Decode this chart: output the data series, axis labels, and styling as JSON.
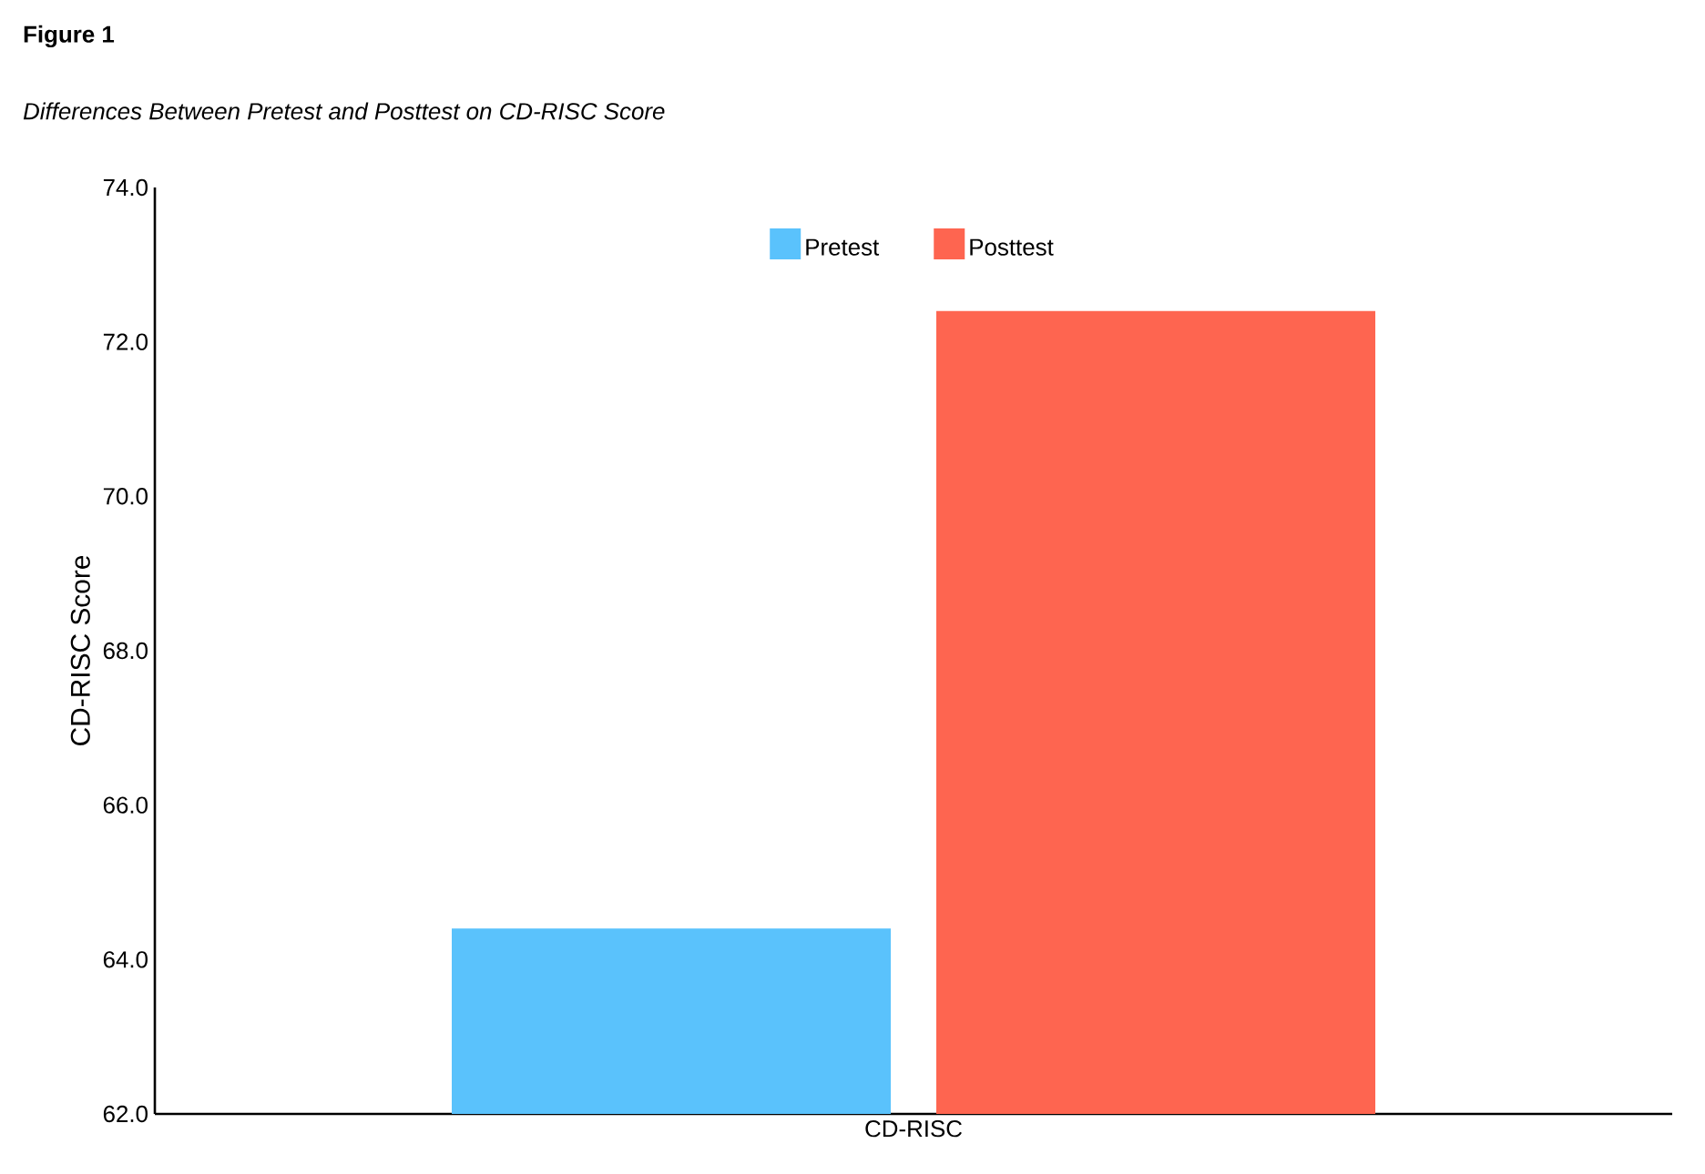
{
  "chart_data": {
    "type": "bar",
    "title": "Figure 1",
    "subtitle": "Differences Between Pretest and Posttest on CD-RISC Score",
    "ylabel": "CD-RISC Score",
    "categories": [
      "CD-RISC"
    ],
    "series": [
      {
        "name": "Pretest",
        "color": "#5ac2fc",
        "values": [
          64.4
        ]
      },
      {
        "name": "Posttest",
        "color": "#fe6550",
        "values": [
          72.4
        ]
      }
    ],
    "ylim": [
      62,
      74
    ],
    "yticks": [
      {
        "value": 62,
        "label": "62.0"
      },
      {
        "value": 64,
        "label": "64.0"
      },
      {
        "value": 66,
        "label": "66.0"
      },
      {
        "value": 68,
        "label": "68.0"
      },
      {
        "value": 70,
        "label": "70.0"
      },
      {
        "value": 72,
        "label": "72.0"
      },
      {
        "value": 74,
        "label": "74.0"
      }
    ],
    "grid": false,
    "legend": "top"
  }
}
